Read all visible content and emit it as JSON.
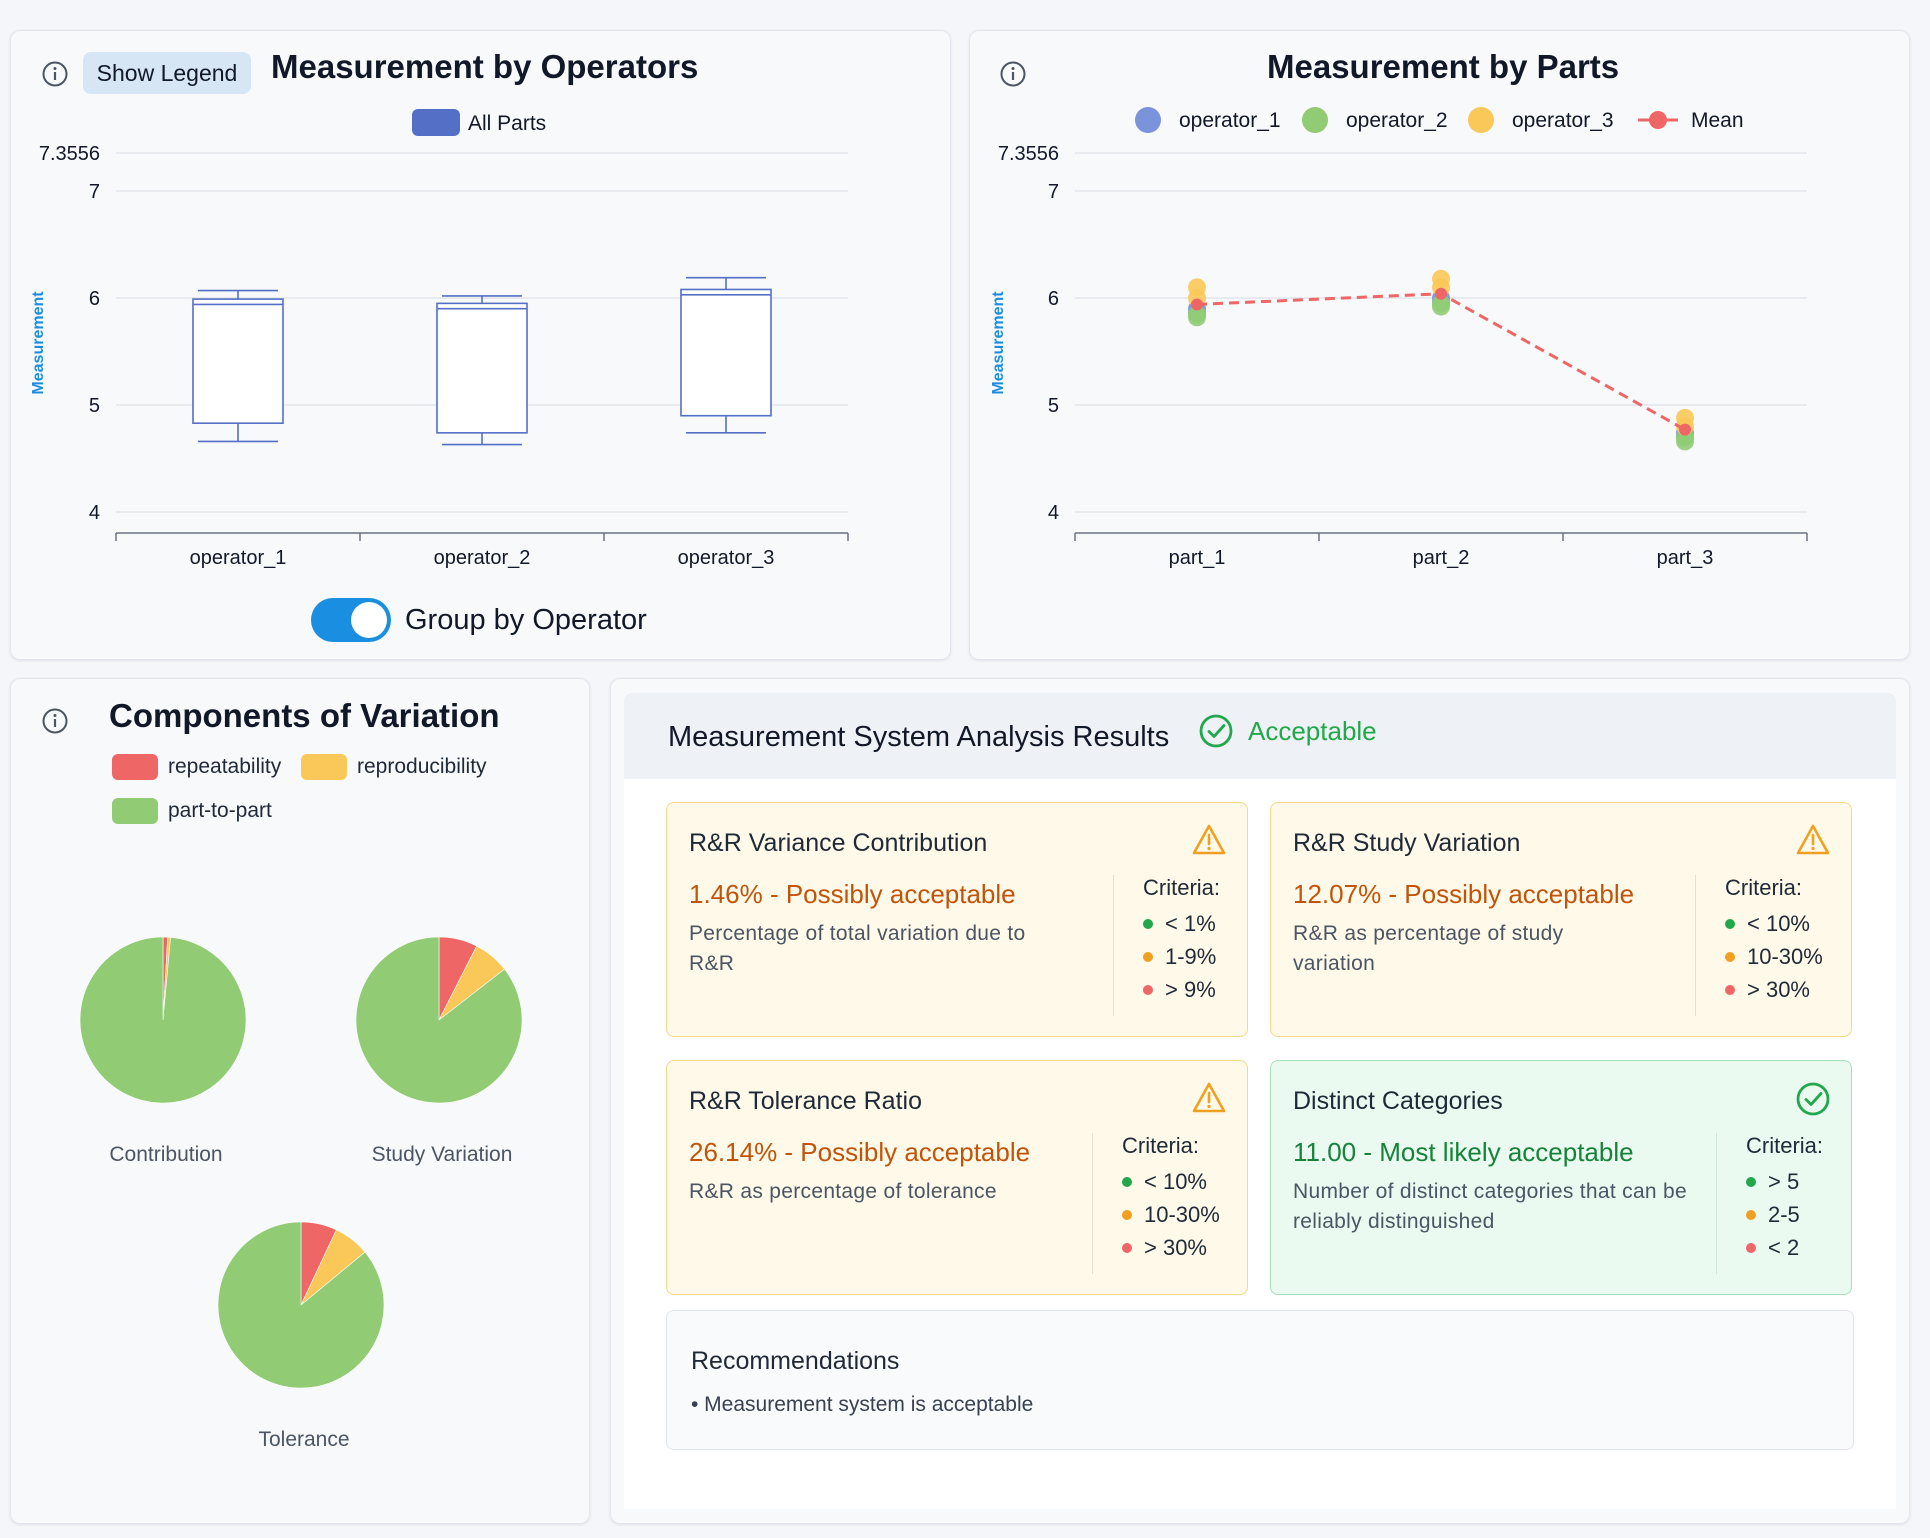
{
  "colors": {
    "accent": "#1a8ee0",
    "box_stroke": "#5470c6",
    "operator_1": "#7b93db",
    "operator_2": "#91cc75",
    "operator_3": "#fac858",
    "mean": "#ee6666",
    "repeatability": "#ee6666",
    "reproducibility": "#fac858",
    "part_to_part": "#91cc75",
    "acceptable": "#22a84a",
    "warning": "#f0a020"
  },
  "operators_panel": {
    "show_legend_label": "Show Legend",
    "title": "Measurement by Operators",
    "legend_label": "All Parts",
    "toggle_label": "Group by Operator",
    "toggle_on": true,
    "icon": "info-icon"
  },
  "parts_panel": {
    "title": "Measurement by Parts",
    "icon": "info-icon"
  },
  "variation_panel": {
    "title": "Components of Variation",
    "icon": "info-icon",
    "legend": [
      "repeatability",
      "reproducibility",
      "part-to-part"
    ],
    "pie_labels": [
      "Contribution",
      "Study Variation",
      "Tolerance"
    ]
  },
  "chart_data": [
    {
      "type": "box",
      "title": "Measurement by Operators",
      "ylabel": "Measurement",
      "ylim": [
        4,
        7.3556
      ],
      "yticks": [
        "4",
        "5",
        "6",
        "7",
        "7.3556"
      ],
      "categories": [
        "operator_1",
        "operator_2",
        "operator_3"
      ],
      "legend": [
        "All Parts"
      ],
      "series": [
        {
          "name": "All Parts",
          "boxes": [
            {
              "min": 4.66,
              "q1": 4.83,
              "median": 5.94,
              "q3": 5.99,
              "max": 6.07
            },
            {
              "min": 4.63,
              "q1": 4.74,
              "median": 5.9,
              "q3": 5.95,
              "max": 6.02
            },
            {
              "min": 4.74,
              "q1": 4.9,
              "median": 6.03,
              "q3": 6.08,
              "max": 6.19
            }
          ]
        }
      ]
    },
    {
      "type": "scatter",
      "title": "Measurement by Parts",
      "ylabel": "Measurement",
      "ylim": [
        4,
        7.3556
      ],
      "yticks": [
        "4",
        "5",
        "6",
        "7",
        "7.3556"
      ],
      "categories": [
        "part_1",
        "part_2",
        "part_3"
      ],
      "legend": [
        "operator_1",
        "operator_2",
        "operator_3",
        "Mean"
      ],
      "series": [
        {
          "name": "operator_1",
          "values": [
            [
              5.86,
              5.9
            ],
            [
              5.96,
              6.0
            ],
            [
              4.7,
              4.74
            ]
          ]
        },
        {
          "name": "operator_2",
          "values": [
            [
              5.82,
              5.85
            ],
            [
              5.92,
              5.95
            ],
            [
              4.66,
              4.7
            ]
          ]
        },
        {
          "name": "operator_3",
          "values": [
            [
              6.0,
              6.1
            ],
            [
              6.1,
              6.18
            ],
            [
              4.8,
              4.88
            ]
          ]
        },
        {
          "name": "Mean",
          "values": [
            5.94,
            6.04,
            4.77
          ]
        }
      ]
    },
    {
      "type": "pie",
      "title": "Contribution",
      "labels": [
        "repeatability",
        "reproducibility",
        "part-to-part"
      ],
      "values": [
        0.9,
        0.56,
        98.54
      ]
    },
    {
      "type": "pie",
      "title": "Study Variation",
      "labels": [
        "repeatability",
        "reproducibility",
        "part-to-part"
      ],
      "values": [
        7.5,
        7.0,
        85.5
      ]
    },
    {
      "type": "pie",
      "title": "Tolerance",
      "labels": [
        "repeatability",
        "reproducibility",
        "part-to-part"
      ],
      "values": [
        7.0,
        7.0,
        86.0
      ]
    }
  ],
  "msa": {
    "title": "Measurement System Analysis Results",
    "status": "Acceptable",
    "status_icon": "check-circle-icon",
    "cards": [
      {
        "title": "R&R Variance Contribution",
        "value": "1.46% - Possibly acceptable",
        "description": "Percentage of total variation due to R&R",
        "icon": "warning-icon",
        "criteria_label": "Criteria:",
        "criteria": [
          "< 1%",
          "1-9%",
          "> 9%"
        ]
      },
      {
        "title": "R&R Study Variation",
        "value": "12.07% - Possibly acceptable",
        "description": "R&R as percentage of study variation",
        "icon": "warning-icon",
        "criteria_label": "Criteria:",
        "criteria": [
          "< 10%",
          "10-30%",
          "> 30%"
        ]
      },
      {
        "title": "R&R Tolerance Ratio",
        "value": "26.14% - Possibly acceptable",
        "description": "R&R as percentage of tolerance",
        "icon": "warning-icon",
        "criteria_label": "Criteria:",
        "criteria": [
          "< 10%",
          "10-30%",
          "> 30%"
        ]
      },
      {
        "title": "Distinct Categories",
        "value": "11.00 - Most likely acceptable",
        "description": "Number of distinct categories that can be reliably distinguished",
        "icon": "check-circle-icon",
        "criteria_label": "Criteria:",
        "criteria": [
          "> 5",
          "2-5",
          "< 2"
        ]
      }
    ],
    "recommendations_title": "Recommendations",
    "recommendations": [
      "• Measurement system is acceptable"
    ]
  }
}
